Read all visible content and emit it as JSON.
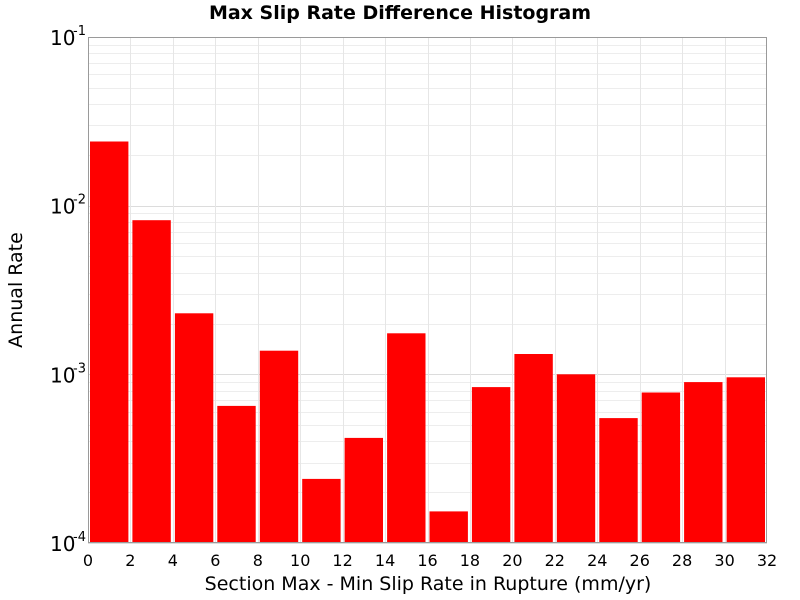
{
  "chart_data": {
    "type": "bar",
    "title": "Max Slip Rate Difference Histogram",
    "xlabel": "Section Max - Min Slip Rate in Rupture (mm/yr)",
    "ylabel": "Annual Rate",
    "xlim": [
      0,
      32
    ],
    "ylim": [
      0.0001,
      0.1
    ],
    "yscale": "log",
    "grid": true,
    "bar_color": "#ff0000",
    "x_ticks": [
      "0",
      "2",
      "4",
      "6",
      "8",
      "10",
      "12",
      "14",
      "16",
      "18",
      "20",
      "22",
      "24",
      "26",
      "28",
      "30",
      "32"
    ],
    "y_ticks": [
      {
        "base": "10",
        "exp": "-1",
        "value": 0.1
      },
      {
        "base": "10",
        "exp": "-2",
        "value": 0.01
      },
      {
        "base": "10",
        "exp": "-3",
        "value": 0.001
      },
      {
        "base": "10",
        "exp": "-4",
        "value": 0.0001
      }
    ],
    "bin_width": 2,
    "bins": [
      {
        "x_start": 0,
        "value": 0.024
      },
      {
        "x_start": 2,
        "value": 0.0082
      },
      {
        "x_start": 4,
        "value": 0.0023
      },
      {
        "x_start": 6,
        "value": 0.00065
      },
      {
        "x_start": 8,
        "value": 0.00138
      },
      {
        "x_start": 10,
        "value": 0.00024
      },
      {
        "x_start": 12,
        "value": 0.00042
      },
      {
        "x_start": 14,
        "value": 0.00175
      },
      {
        "x_start": 16,
        "value": 0.000154
      },
      {
        "x_start": 18,
        "value": 0.00084
      },
      {
        "x_start": 20,
        "value": 0.00132
      },
      {
        "x_start": 22,
        "value": 0.001
      },
      {
        "x_start": 24,
        "value": 0.00055
      },
      {
        "x_start": 26,
        "value": 0.00078
      },
      {
        "x_start": 28,
        "value": 0.0009
      },
      {
        "x_start": 30,
        "value": 0.00096
      }
    ]
  }
}
